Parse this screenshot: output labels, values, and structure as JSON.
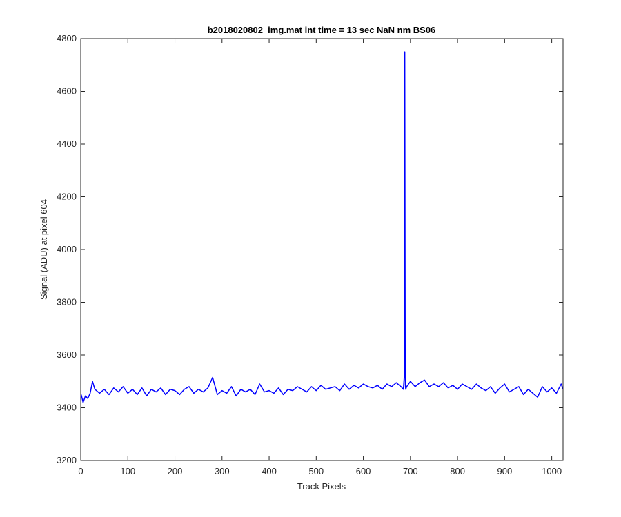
{
  "chart_data": {
    "type": "line",
    "title": "b2018020802_img.mat int time = 13 sec  NaN nm BS06",
    "xlabel": "Track Pixels",
    "ylabel": "Signal (ADU) at pixel 604",
    "xlim": [
      0,
      1024
    ],
    "ylim": [
      3200,
      4800
    ],
    "x_ticks": [
      "0",
      "100",
      "200",
      "300",
      "400",
      "500",
      "600",
      "700",
      "800",
      "900",
      "1000"
    ],
    "y_ticks": [
      "3200",
      "3400",
      "3600",
      "3800",
      "4000",
      "4200",
      "4400",
      "4600",
      "4800"
    ],
    "grid": false,
    "series": [
      {
        "color": "#0000ff",
        "x": [
          1,
          5,
          10,
          15,
          20,
          25,
          30,
          40,
          50,
          60,
          70,
          80,
          90,
          100,
          110,
          120,
          130,
          140,
          150,
          160,
          170,
          180,
          190,
          200,
          210,
          220,
          230,
          240,
          250,
          260,
          270,
          280,
          290,
          300,
          310,
          320,
          330,
          340,
          350,
          360,
          370,
          380,
          390,
          400,
          410,
          420,
          430,
          440,
          450,
          460,
          470,
          480,
          490,
          500,
          510,
          520,
          530,
          540,
          550,
          560,
          570,
          580,
          590,
          600,
          610,
          620,
          630,
          640,
          650,
          660,
          670,
          680,
          685,
          687,
          688,
          689,
          690,
          692,
          700,
          710,
          720,
          730,
          740,
          750,
          760,
          770,
          780,
          790,
          800,
          810,
          820,
          830,
          840,
          850,
          860,
          870,
          880,
          890,
          900,
          910,
          920,
          930,
          940,
          950,
          960,
          970,
          980,
          990,
          1000,
          1010,
          1020,
          1024
        ],
        "y": [
          3450,
          3420,
          3445,
          3435,
          3455,
          3500,
          3470,
          3455,
          3470,
          3450,
          3475,
          3460,
          3480,
          3455,
          3470,
          3450,
          3475,
          3445,
          3470,
          3460,
          3475,
          3450,
          3470,
          3465,
          3450,
          3470,
          3480,
          3455,
          3470,
          3460,
          3475,
          3515,
          3450,
          3465,
          3455,
          3480,
          3445,
          3470,
          3460,
          3470,
          3450,
          3490,
          3460,
          3465,
          3455,
          3475,
          3450,
          3470,
          3465,
          3480,
          3470,
          3460,
          3480,
          3465,
          3485,
          3470,
          3475,
          3480,
          3465,
          3490,
          3470,
          3485,
          3475,
          3490,
          3480,
          3475,
          3485,
          3470,
          3490,
          3480,
          3495,
          3480,
          3470,
          3520,
          4750,
          3490,
          3470,
          3480,
          3500,
          3480,
          3495,
          3505,
          3480,
          3490,
          3480,
          3495,
          3475,
          3485,
          3470,
          3490,
          3480,
          3470,
          3490,
          3475,
          3465,
          3480,
          3455,
          3475,
          3490,
          3460,
          3470,
          3480,
          3450,
          3470,
          3455,
          3440,
          3480,
          3460,
          3475,
          3455,
          3490,
          3470
        ]
      }
    ]
  }
}
